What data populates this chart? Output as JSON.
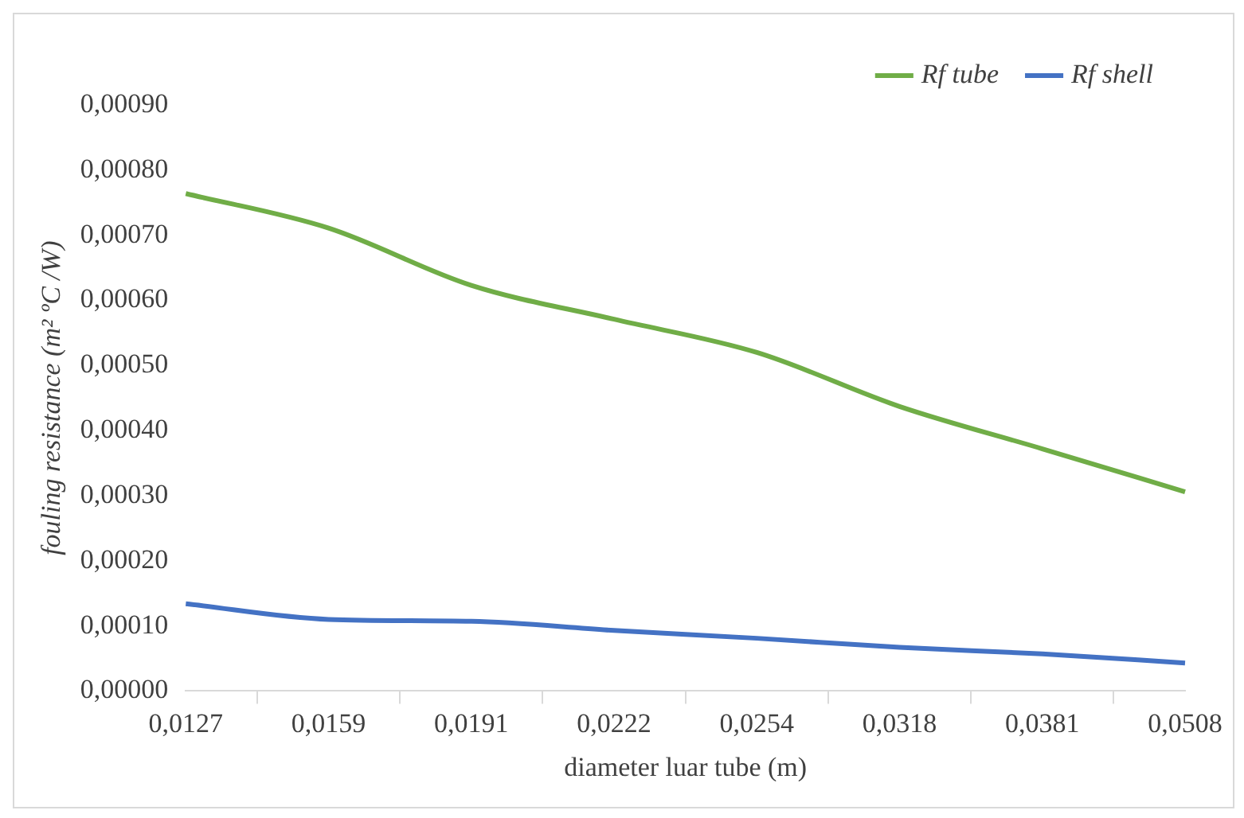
{
  "chart_data": {
    "type": "line",
    "xlabel": "diameter luar tube (m)",
    "ylabel": "fouling resistance (m² ºC /W)",
    "categories": [
      "0,0127",
      "0,0159",
      "0,0191",
      "0,0222",
      "0,0254",
      "0,0318",
      "0,0381",
      "0,0508"
    ],
    "series": [
      {
        "name": "Rf tube",
        "color": "#70ad47",
        "values": [
          0.000764,
          0.000711,
          0.000623,
          0.000571,
          0.00052,
          0.000437,
          0.000372,
          0.000306
        ]
      },
      {
        "name": "Rf shell",
        "color": "#4472c4",
        "values": [
          0.000134,
          0.00011,
          0.000107,
          9.3e-05,
          8.1e-05,
          6.7e-05,
          5.7e-05,
          4.3e-05
        ]
      }
    ],
    "ylim": [
      0,
      0.0009
    ],
    "yticks": [
      {
        "value": 0,
        "label": "0,00000"
      },
      {
        "value": 0.0001,
        "label": "0,00010"
      },
      {
        "value": 0.0002,
        "label": "0,00020"
      },
      {
        "value": 0.0003,
        "label": "0,00030"
      },
      {
        "value": 0.0004,
        "label": "0,00040"
      },
      {
        "value": 0.0005,
        "label": "0,00050"
      },
      {
        "value": 0.0006,
        "label": "0,00060"
      },
      {
        "value": 0.0007,
        "label": "0,00070"
      },
      {
        "value": 0.0008,
        "label": "0,00080"
      },
      {
        "value": 0.0009,
        "label": "0,00090"
      }
    ],
    "grid": false,
    "legend": "top right",
    "marker": "none",
    "line_style": "solid"
  }
}
